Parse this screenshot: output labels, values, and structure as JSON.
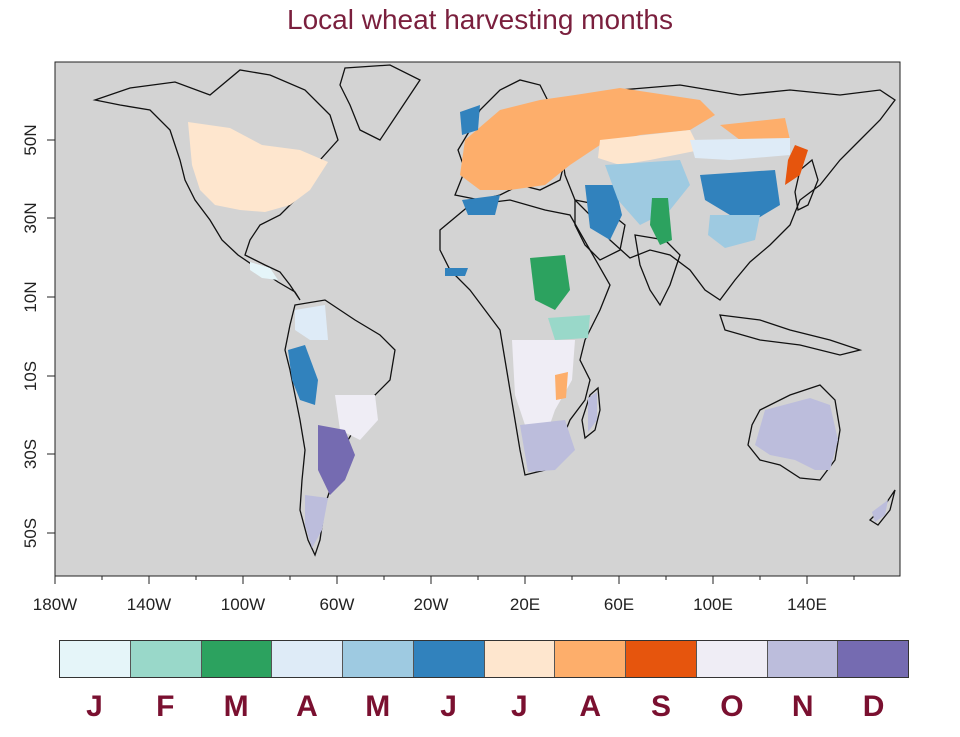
{
  "title": "Local wheat harvesting months",
  "map": {
    "projection": "equirectangular",
    "lon_range": [
      -180,
      180
    ],
    "lat_range": [
      -70,
      90
    ],
    "ocean_color": "#d3d3d3",
    "x_ticks": [
      "180W",
      "140W",
      "100W",
      "60W",
      "20W",
      "20E",
      "60E",
      "100E",
      "140E"
    ],
    "y_ticks": [
      "50N",
      "30N",
      "10N",
      "10S",
      "30S",
      "50S"
    ]
  },
  "legend": {
    "months": [
      {
        "label": "J",
        "color": "#e5f5f9"
      },
      {
        "label": "F",
        "color": "#99d8c9"
      },
      {
        "label": "M",
        "color": "#2ca25f"
      },
      {
        "label": "A",
        "color": "#deebf7"
      },
      {
        "label": "M",
        "color": "#9ecae1"
      },
      {
        "label": "J",
        "color": "#3182bd"
      },
      {
        "label": "J",
        "color": "#fee6ce"
      },
      {
        "label": "A",
        "color": "#fdae6b"
      },
      {
        "label": "S",
        "color": "#e6550d"
      },
      {
        "label": "O",
        "color": "#efedf5"
      },
      {
        "label": "N",
        "color": "#bcbddc"
      },
      {
        "label": "D",
        "color": "#756bb1"
      }
    ]
  }
}
